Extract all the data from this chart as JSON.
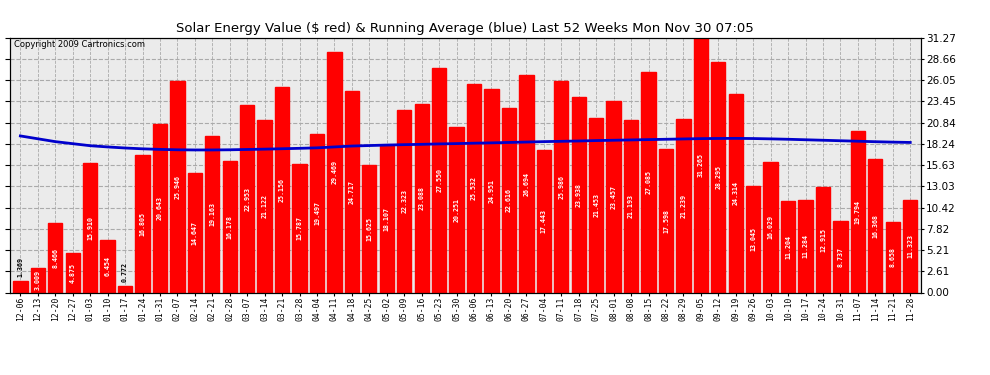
{
  "title": "Solar Energy Value ($ red) & Running Average (blue) Last 52 Weeks Mon Nov 30 07:05",
  "copyright": "Copyright 2009 Cartronics.com",
  "bar_color": "#FF0000",
  "avg_line_color": "#0000CC",
  "background_color": "#FFFFFF",
  "plot_bg_color": "#F0F0F0",
  "grid_color": "#AAAAAA",
  "categories": [
    "12-06",
    "12-13",
    "12-20",
    "12-27",
    "01-03",
    "01-10",
    "01-17",
    "01-24",
    "01-31",
    "02-07",
    "02-14",
    "02-21",
    "02-28",
    "03-07",
    "03-14",
    "03-21",
    "03-28",
    "04-04",
    "04-11",
    "04-18",
    "04-25",
    "05-02",
    "05-09",
    "05-16",
    "05-23",
    "05-30",
    "06-06",
    "06-13",
    "06-20",
    "06-27",
    "07-04",
    "07-11",
    "07-18",
    "07-25",
    "08-01",
    "08-08",
    "08-15",
    "08-22",
    "08-29",
    "09-05",
    "09-12",
    "09-19",
    "09-26",
    "10-03",
    "10-10",
    "10-17",
    "10-24",
    "10-31",
    "11-07",
    "11-14",
    "11-21",
    "11-28"
  ],
  "values": [
    1.369,
    3.009,
    8.466,
    4.875,
    15.91,
    6.454,
    0.772,
    16.805,
    20.643,
    25.946,
    14.647,
    19.163,
    16.178,
    22.953,
    21.122,
    25.156,
    15.787,
    19.497,
    29.469,
    24.717,
    15.625,
    18.107,
    22.323,
    23.088,
    27.55,
    20.251,
    25.532,
    24.951,
    22.616,
    26.694,
    17.443,
    25.986,
    23.938,
    21.453,
    23.457,
    21.193,
    27.085,
    17.598,
    21.239,
    31.265,
    28.295,
    24.314,
    13.045,
    16.029,
    11.204,
    11.284,
    12.915,
    8.737,
    19.794,
    16.368,
    8.658,
    11.323
  ],
  "running_avg": [
    19.2,
    18.85,
    18.5,
    18.25,
    18.0,
    17.85,
    17.72,
    17.62,
    17.55,
    17.5,
    17.48,
    17.48,
    17.5,
    17.54,
    17.58,
    17.63,
    17.68,
    17.74,
    17.85,
    17.96,
    18.02,
    18.08,
    18.13,
    18.17,
    18.22,
    18.26,
    18.31,
    18.35,
    18.4,
    18.45,
    18.5,
    18.54,
    18.58,
    18.63,
    18.67,
    18.71,
    18.75,
    18.79,
    18.83,
    18.87,
    18.89,
    18.9,
    18.88,
    18.84,
    18.79,
    18.73,
    18.67,
    18.61,
    18.55,
    18.49,
    18.44,
    18.4
  ],
  "yticks": [
    0.0,
    2.61,
    5.21,
    7.82,
    10.42,
    13.03,
    15.63,
    18.24,
    20.84,
    23.45,
    26.05,
    28.66,
    31.27
  ],
  "ylim": [
    0,
    31.27
  ]
}
